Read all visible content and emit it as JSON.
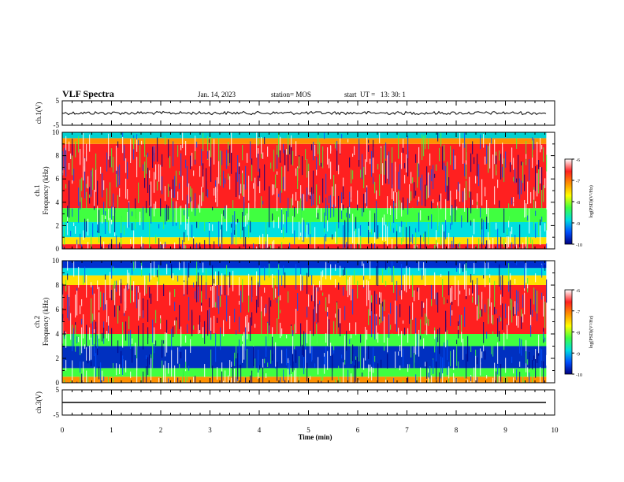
{
  "header": {
    "title": "VLF Spectra",
    "date": "Jan. 14, 2023",
    "station": "station= MOS",
    "start": "start  UT =   13: 30: 1"
  },
  "colorbar": {
    "label": "log(PSD)(V²/Hz)",
    "ticks": [
      "-6",
      "-7",
      "-8",
      "-9",
      "-10"
    ],
    "colors": [
      "#ffffff",
      "#ff2020",
      "#ff9000",
      "#ffff00",
      "#40ff40",
      "#00e0e0",
      "#0050ff",
      "#000080"
    ]
  },
  "chart_data": [
    {
      "type": "line",
      "name": "ch.1 waveform",
      "ylabel": "ch.1(V)",
      "ylim": [
        -5,
        5
      ],
      "yticks": [
        "5",
        "-5"
      ],
      "approx_level": 0
    },
    {
      "type": "heatmap",
      "name": "ch.1 spectrogram",
      "ylabel": "ch.1\nFrequency (kHz)",
      "ylim": [
        0,
        10
      ],
      "yticks": [
        "0",
        "2",
        "4",
        "6",
        "8",
        "10"
      ],
      "bands": [
        {
          "from": 0,
          "to": 0.4,
          "color": "#ff2020"
        },
        {
          "from": 0.4,
          "to": 1.0,
          "color": "#ffe000"
        },
        {
          "from": 1.0,
          "to": 2.3,
          "color": "#00e0e0"
        },
        {
          "from": 2.3,
          "to": 3.5,
          "color": "#40ff40"
        },
        {
          "from": 3.5,
          "to": 9.0,
          "color": "#ff2020"
        },
        {
          "from": 9.0,
          "to": 9.5,
          "color": "#ff9000"
        },
        {
          "from": 9.5,
          "to": 10,
          "color": "#00d0d0"
        }
      ]
    },
    {
      "type": "heatmap",
      "name": "ch.2 spectrogram",
      "ylabel": "ch.2\nFrequency (kHz)",
      "ylim": [
        0,
        10
      ],
      "yticks": [
        "0",
        "2",
        "4",
        "6",
        "8",
        "10"
      ],
      "bands": [
        {
          "from": 0,
          "to": 0.5,
          "color": "#ff9000"
        },
        {
          "from": 0.5,
          "to": 1.2,
          "color": "#40ff40"
        },
        {
          "from": 1.2,
          "to": 3.0,
          "color": "#0030c0"
        },
        {
          "from": 3.0,
          "to": 4.0,
          "color": "#40ff40"
        },
        {
          "from": 4.0,
          "to": 8.0,
          "color": "#ff2020"
        },
        {
          "from": 8.0,
          "to": 8.8,
          "color": "#ffe000"
        },
        {
          "from": 8.8,
          "to": 9.4,
          "color": "#00e0e0"
        },
        {
          "from": 9.4,
          "to": 10,
          "color": "#0030d0"
        }
      ]
    },
    {
      "type": "line",
      "name": "ch.3 waveform",
      "ylabel": "ch.3(V)",
      "ylim": [
        -5,
        5
      ],
      "yticks": [
        "5",
        "-5"
      ],
      "approx_level": 0
    }
  ],
  "xaxis": {
    "label": "Time  (min)",
    "range": [
      0,
      10
    ],
    "data_end": 9.83,
    "ticks": [
      "0",
      "1",
      "2",
      "3",
      "4",
      "5",
      "6",
      "7",
      "8",
      "9",
      "10"
    ]
  }
}
